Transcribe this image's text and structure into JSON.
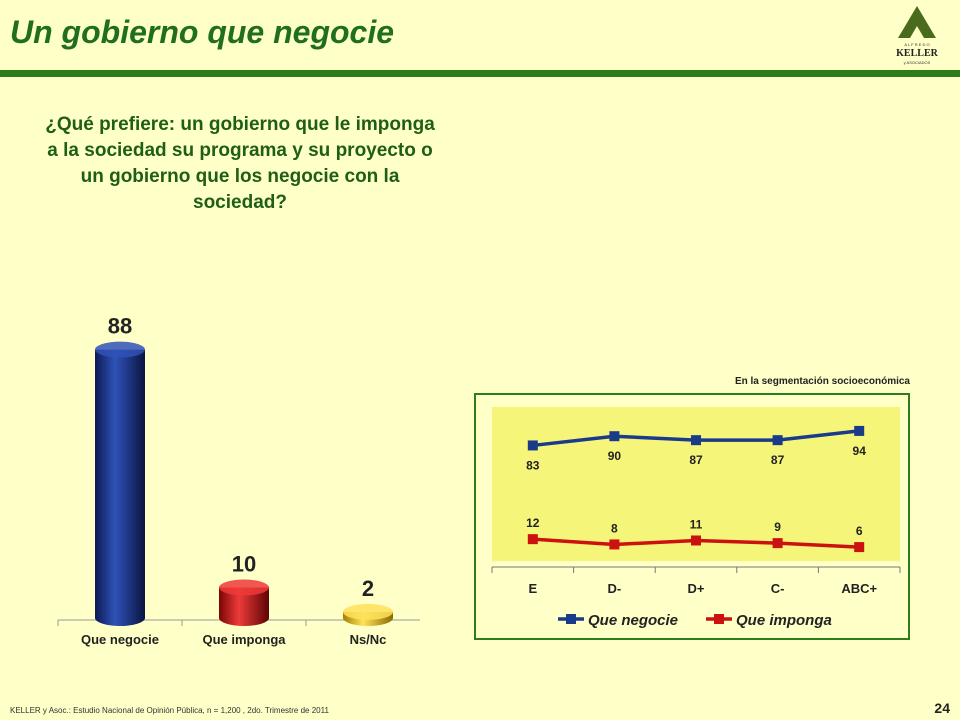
{
  "header": {
    "title": "Un gobierno que negocie",
    "logo": {
      "top_text": "A L F R E D O",
      "name": "KELLER",
      "bottom_text": "y ASOCIADOS"
    }
  },
  "question": "¿Qué prefiere: un gobierno que le imponga a la sociedad su programa y su proyecto o un gobierno que los negocie con la sociedad?",
  "chart_data": [
    {
      "type": "bar",
      "categories": [
        "Que negocie",
        "Que imponga",
        "Ns/Nc"
      ],
      "values": [
        88,
        10,
        2
      ],
      "colors": [
        "#1a2d7a",
        "#c41212",
        "#e6b800"
      ],
      "title": "",
      "xlabel": "",
      "ylabel": "",
      "ylim": [
        0,
        100
      ],
      "grid": false
    },
    {
      "type": "line",
      "title": "En la segmentación socioeconómica",
      "categories": [
        "E",
        "D-",
        "D+",
        "C-",
        "ABC+"
      ],
      "series": [
        {
          "name": "Que negocie",
          "values": [
            83,
            90,
            87,
            87,
            94
          ],
          "color": "#1a3a8a"
        },
        {
          "name": "Que imponga",
          "values": [
            12,
            8,
            11,
            9,
            6
          ],
          "color": "#cc1111"
        }
      ],
      "ylim": [
        0,
        100
      ],
      "legend": "bottom",
      "grid": false
    }
  ],
  "footer": {
    "source": "KELLER y Asoc.: Estudio Nacional de Opinión Pública, n = 1,200 , 2do. Trimestre de 2011",
    "page": "24"
  }
}
